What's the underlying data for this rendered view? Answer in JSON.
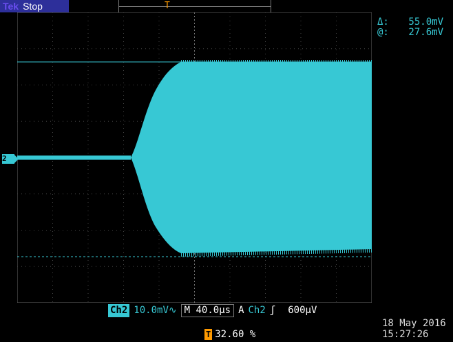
{
  "status": {
    "brand": "Tek",
    "state": "Stop"
  },
  "record": {
    "trigger_marker": "T"
  },
  "trigger": {
    "marker": "T",
    "position_label": "32.60 %"
  },
  "channel": {
    "marker_label": "2"
  },
  "cursors": {
    "delta_label": "Δ:",
    "delta_value": "55.0mV",
    "at_label": "@:",
    "at_value": "27.6mV"
  },
  "settings": {
    "channel": "Ch2",
    "volts_div": "10.0mV",
    "bw_symbol": "∿",
    "timebase_prefix": "M",
    "timebase": "40.0µs",
    "acq_mode": "A",
    "trigger_source": "Ch2",
    "trigger_slope": "ʃ",
    "trigger_level": "600µV"
  },
  "datetime": {
    "date": "18 May 2016",
    "time": "15:27:26"
  },
  "colors": {
    "trace": "#37c8d4",
    "trigger": "#ff9a00",
    "status_bg": "#2d2f9a",
    "background": "#000000"
  }
}
